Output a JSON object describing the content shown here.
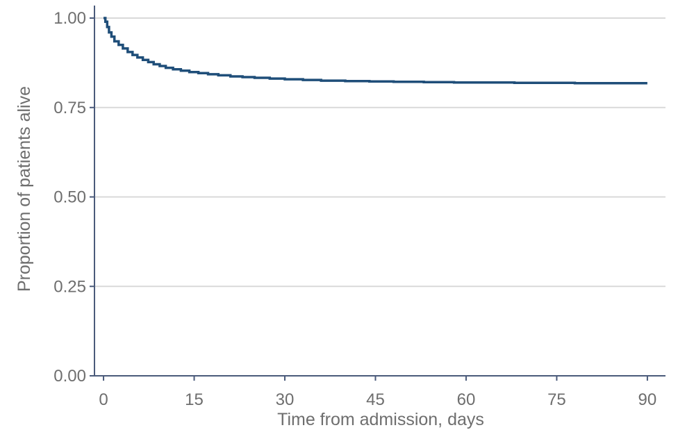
{
  "chart_data": {
    "type": "line",
    "title": "",
    "xlabel": "Time from admission, days",
    "ylabel": "Proportion of patients alive",
    "xlim": [
      -1.5,
      93
    ],
    "ylim": [
      0,
      1.035
    ],
    "x_ticks": [
      0,
      15,
      30,
      45,
      60,
      75,
      90
    ],
    "x_tick_labels": [
      "0",
      "15",
      "30",
      "45",
      "60",
      "75",
      "90"
    ],
    "y_ticks": [
      0,
      0.25,
      0.5,
      0.75,
      1.0
    ],
    "y_tick_labels": [
      "0.00",
      "0.25",
      "0.50",
      "0.75",
      "1.00"
    ],
    "grid": "horizontal",
    "legend": "none",
    "step": true,
    "colors": {
      "line": "#1f4e79",
      "axis": "#4a5a7a",
      "grid": "#d9d9d9",
      "text": "#6e6e6e"
    },
    "series": [
      {
        "x": [
          0,
          0.3,
          0.6,
          0.9,
          1.3,
          1.8,
          2.5,
          3.2,
          4,
          4.8,
          5.6,
          6.5,
          7.4,
          8.3,
          9.3,
          10.3,
          11.5,
          12.8,
          14.2,
          15.7,
          17.3,
          19,
          21,
          23,
          25,
          27.5,
          30,
          33,
          36,
          40,
          44,
          48,
          53,
          58,
          63,
          68,
          73,
          78,
          83,
          87,
          90
        ],
        "y": [
          1.0,
          0.99,
          0.975,
          0.96,
          0.948,
          0.935,
          0.925,
          0.915,
          0.905,
          0.897,
          0.89,
          0.883,
          0.877,
          0.871,
          0.866,
          0.861,
          0.857,
          0.853,
          0.849,
          0.846,
          0.843,
          0.84,
          0.837,
          0.835,
          0.833,
          0.831,
          0.829,
          0.827,
          0.825,
          0.824,
          0.823,
          0.822,
          0.821,
          0.82,
          0.82,
          0.819,
          0.819,
          0.818,
          0.818,
          0.818,
          0.818
        ]
      }
    ]
  }
}
